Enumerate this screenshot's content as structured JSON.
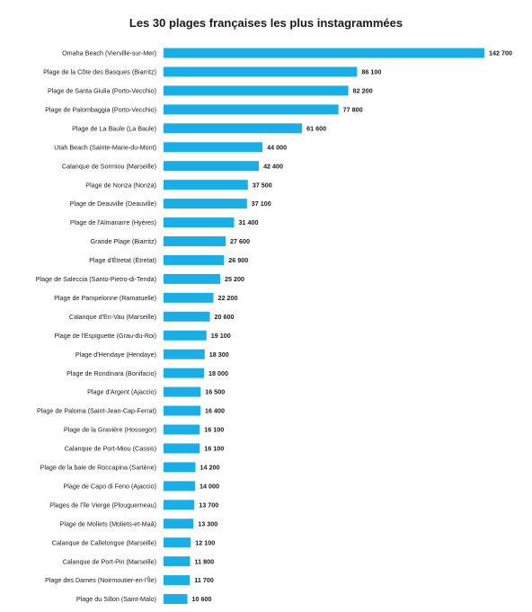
{
  "chart_data": {
    "type": "bar",
    "orientation": "horizontal",
    "title": "Les 30 plages françaises les plus instagrammées",
    "xlabel": "",
    "ylabel": "",
    "grid": false,
    "legend": "none",
    "bar_color": "#1aaee6",
    "categories": [
      "Omaha Beach (Vierville-sur-Mer)",
      "Plage de la Côte des Basques (Biarritz)",
      "Plage de Santa Giulia (Porto-Vecchio)",
      "Plage de Palombaggia (Porto-Vecchio)",
      "Plage de La Baule (La Baule)",
      "Utah Beach (Sainte-Marie-du-Mont)",
      "Calanque de Sormiou (Marseille)",
      "Plage de Nonza (Nonza)",
      "Plage de Deauville (Deauville)",
      "Plage de l'Almanarre (Hyères)",
      "Grande Plage (Biarritz)",
      "Plage d'Étretat (Étretat)",
      "Plage de Saleccia (Santo-Pietro-di-Tenda)",
      "Plage de Pampelonne (Ramatuelle)",
      "Calanque d'En-Vau (Marseille)",
      "Plage de l'Espiguette (Grau-du-Roi)",
      "Plage d'Hendaye (Hendaye)",
      "Plage de Rondinara (Bonifacio)",
      "Plage d'Argent (Ajaccio)",
      "Plage de Paloma (Saint-Jean-Cap-Ferrat)",
      "Plage de la Gravière (Hossegor)",
      "Calanque de Port-Miou (Cassis)",
      "Plage de la baie de Roccapina (Sartène)",
      "Plage de Capo di Feno (Ajaccio)",
      "Plages de l'île Vierge (Plouguerneau)",
      "Plage de Moliets (Moliets-et-Maâ)",
      "Calanque de Callelongue (Marseille)",
      "Calanque de Port-Pin (Marseille)",
      "Plage des Dames (Noirmoutier-en-l'Île)",
      "Plage du Sillon (Saint-Malo)"
    ],
    "values": [
      142700,
      86100,
      82200,
      77800,
      61600,
      44000,
      42400,
      37500,
      37100,
      31400,
      27600,
      26900,
      25200,
      22200,
      20600,
      19100,
      18300,
      18000,
      16500,
      16400,
      16100,
      16100,
      14200,
      14000,
      13700,
      13300,
      12100,
      11800,
      11700,
      10600
    ],
    "value_labels": [
      "142 700",
      "86 100",
      "82 200",
      "77 800",
      "61 600",
      "44 000",
      "42 400",
      "37 500",
      "37 100",
      "31 400",
      "27 600",
      "26 900",
      "25 200",
      "22 200",
      "20 600",
      "19 100",
      "18 300",
      "18 000",
      "16 500",
      "16 400",
      "16 100",
      "16 100",
      "14 200",
      "14 000",
      "13 700",
      "13 300",
      "12 100",
      "11 800",
      "11 700",
      "10 600"
    ],
    "xlim": [
      0,
      142700
    ]
  }
}
